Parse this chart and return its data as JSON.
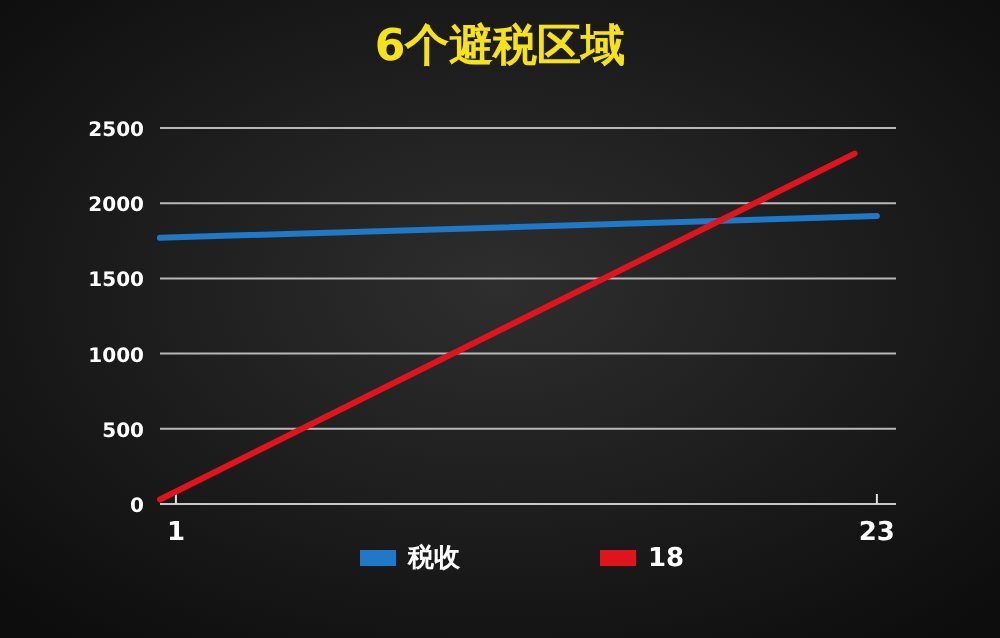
{
  "chart_data": {
    "type": "line",
    "title": "6个避税区域",
    "series": [
      {
        "name": "税收",
        "color": "#1f78c8",
        "x": [
          0.5,
          23
        ],
        "values": [
          1770,
          1915
        ]
      },
      {
        "name": "18",
        "color": "#e0141c",
        "x": [
          0.5,
          22.3
        ],
        "values": [
          30,
          2330
        ]
      }
    ],
    "xlim": [
      0.5,
      23.6
    ],
    "xticks": [
      1,
      23
    ],
    "ylim": [
      0,
      2500
    ],
    "yticks": [
      0,
      500,
      1000,
      1500,
      2000,
      2500
    ],
    "grid": "y",
    "legend": "bottom"
  }
}
